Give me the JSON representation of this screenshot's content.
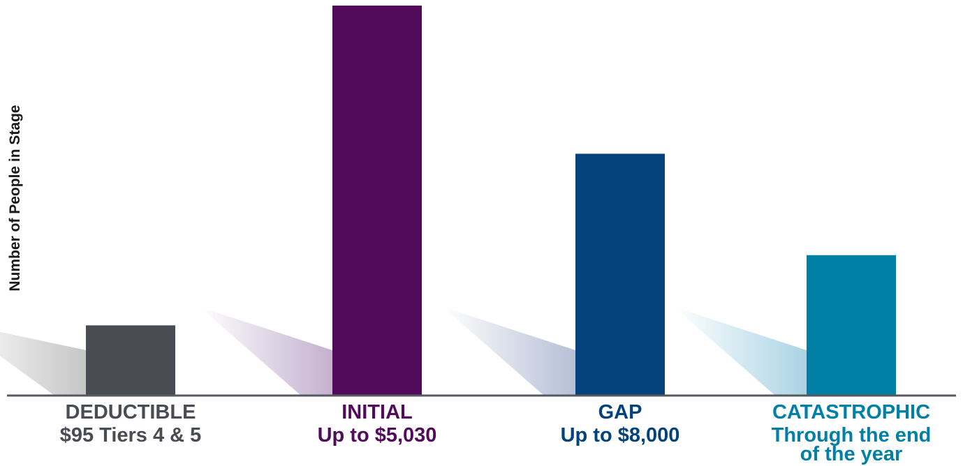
{
  "chart_data": {
    "type": "bar",
    "ylabel": "Number of People in Stage",
    "xlabel": "",
    "ylim": [
      0,
      100
    ],
    "categories": [
      {
        "name": "DEDUCTIBLE",
        "sub": [
          "$95 Tiers 4 & 5"
        ],
        "color": "#4a4c54"
      },
      {
        "name": "INITIAL",
        "sub": [
          "Up to $5,030"
        ],
        "color": "#520b5b"
      },
      {
        "name": "GAP",
        "sub": [
          "Up to $8,000"
        ],
        "color": "#03427b"
      },
      {
        "name": "CATASTROPHIC",
        "sub": [
          "Through the end",
          "of the year"
        ],
        "color": "#017fa5"
      }
    ],
    "values": [
      18,
      100,
      62,
      36
    ],
    "shadow_colors": [
      "#bcbcbc",
      "#b9a3c6",
      "#a9b4cf",
      "#9ccce0"
    ],
    "axis_color": "#555a62"
  }
}
